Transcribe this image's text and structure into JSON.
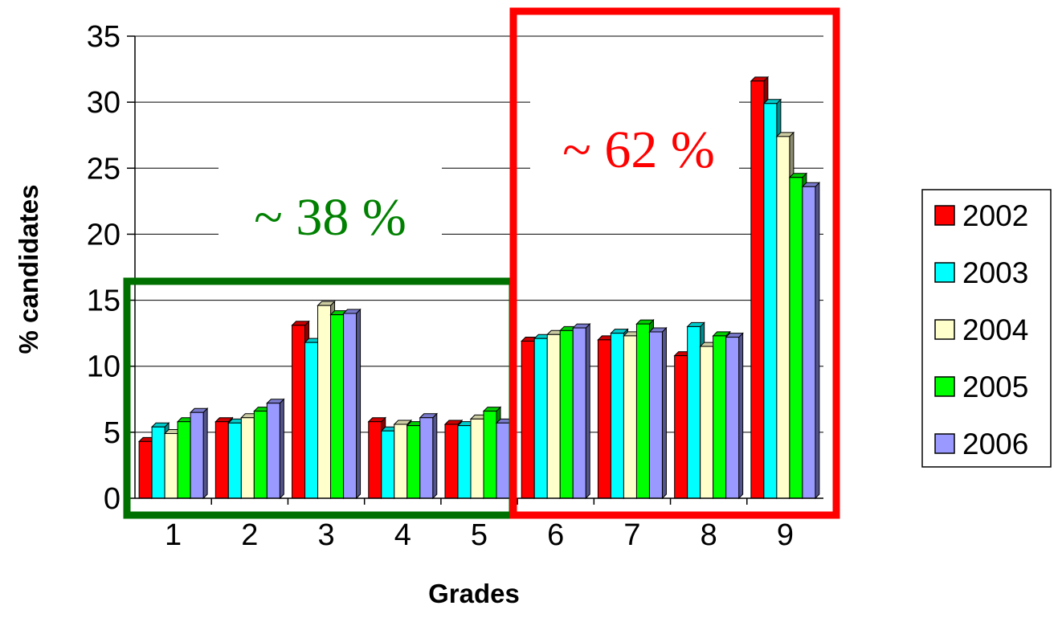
{
  "chart_data": {
    "type": "bar",
    "title": "",
    "xlabel": "Grades",
    "ylabel": "% candidates",
    "ylim": [
      0,
      35
    ],
    "yticks": [
      0,
      5,
      10,
      15,
      20,
      25,
      30,
      35
    ],
    "categories": [
      "1",
      "2",
      "3",
      "4",
      "5",
      "6",
      "7",
      "8",
      "9"
    ],
    "grid": "horizontal",
    "legend_position": "right",
    "series": [
      {
        "name": "2002",
        "color": "#ff0000",
        "values": [
          4.3,
          5.8,
          13.1,
          5.8,
          5.6,
          11.9,
          12.0,
          10.8,
          31.6
        ]
      },
      {
        "name": "2003",
        "color": "#00ffff",
        "values": [
          5.4,
          5.7,
          11.8,
          5.1,
          5.5,
          12.1,
          12.5,
          13.0,
          29.9
        ]
      },
      {
        "name": "2004",
        "color": "#ffffcc",
        "values": [
          4.9,
          6.1,
          14.6,
          5.6,
          6.0,
          12.4,
          12.3,
          11.5,
          27.4
        ]
      },
      {
        "name": "2005",
        "color": "#00ff00",
        "values": [
          5.8,
          6.6,
          13.9,
          5.5,
          6.6,
          12.7,
          13.2,
          12.3,
          24.3
        ]
      },
      {
        "name": "2006",
        "color": "#9999ff",
        "values": [
          6.5,
          7.2,
          14.0,
          6.1,
          5.7,
          12.9,
          12.6,
          12.2,
          23.6
        ]
      }
    ],
    "annotations": [
      {
        "text": "~ 38 %",
        "color": "#008000",
        "covers_grades": [
          "1",
          "2",
          "3",
          "4",
          "5"
        ]
      },
      {
        "text": "~ 62 %",
        "color": "#ff0000",
        "covers_grades": [
          "6",
          "7",
          "8",
          "9"
        ]
      }
    ]
  }
}
